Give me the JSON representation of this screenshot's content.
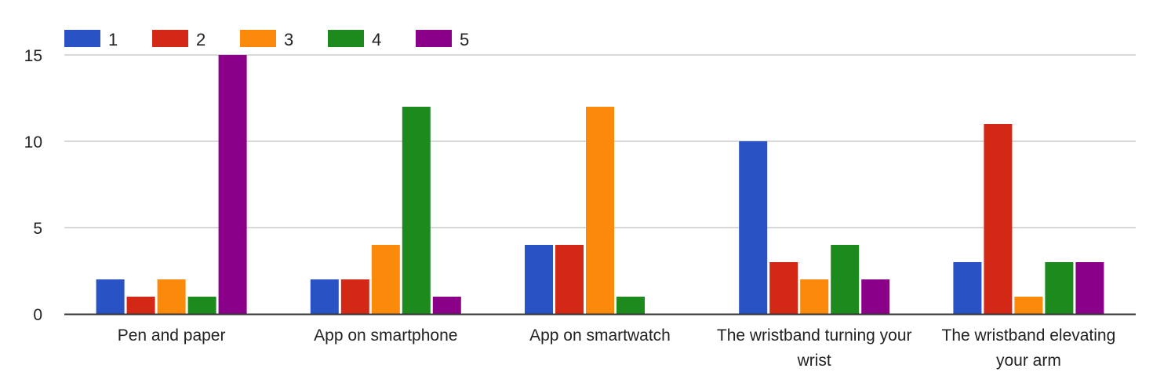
{
  "chart_data": {
    "type": "bar",
    "title": "",
    "xlabel": "",
    "ylabel": "",
    "ylim": [
      0,
      15
    ],
    "yticks": [
      0,
      5,
      10,
      15
    ],
    "grid": true,
    "legend_position": "top-left",
    "categories": [
      [
        "Pen and paper"
      ],
      [
        "App on smartphone"
      ],
      [
        "App on smartwatch"
      ],
      [
        "The wristband turning your",
        "wrist"
      ],
      [
        "The wristband elevating",
        "your arm"
      ]
    ],
    "series": [
      {
        "name": "1",
        "color": "#2952c5",
        "values": [
          2,
          2,
          4,
          10,
          3
        ]
      },
      {
        "name": "2",
        "color": "#d42816",
        "values": [
          1,
          2,
          4,
          3,
          11
        ]
      },
      {
        "name": "3",
        "color": "#fc8a0a",
        "values": [
          2,
          4,
          12,
          2,
          1
        ]
      },
      {
        "name": "4",
        "color": "#1d8a1d",
        "values": [
          1,
          12,
          1,
          4,
          3
        ]
      },
      {
        "name": "5",
        "color": "#8a0089",
        "values": [
          15,
          1,
          0,
          2,
          3
        ]
      }
    ]
  }
}
